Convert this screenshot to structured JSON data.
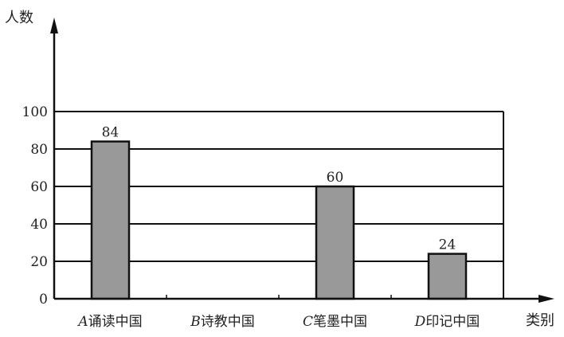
{
  "chart_data": {
    "type": "bar",
    "title": "",
    "ylabel": "人数",
    "xlabel": "类别",
    "categories": [
      {
        "letter": "A",
        "name": "诵读中国"
      },
      {
        "letter": "B",
        "name": "诗教中国"
      },
      {
        "letter": "C",
        "name": "笔墨中国"
      },
      {
        "letter": "D",
        "name": "印记中国"
      }
    ],
    "values": [
      84,
      null,
      60,
      24
    ],
    "data_labels": [
      "84",
      "",
      "60",
      "24"
    ],
    "ylim": [
      0,
      100
    ],
    "yticks": [
      "0",
      "20",
      "40",
      "60",
      "80",
      "100"
    ],
    "grid": true,
    "bar_color": "#999999"
  }
}
